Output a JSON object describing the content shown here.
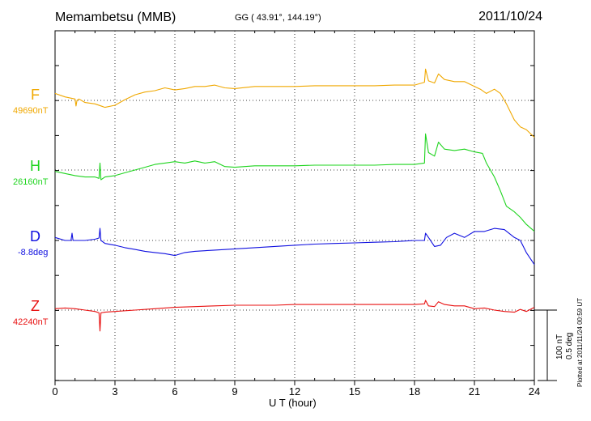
{
  "header": {
    "station": "Memambetsu (MMB)",
    "coords": "GG ( 43.91°, 144.19°)",
    "date": "2011/10/24"
  },
  "footer": {
    "plotted": "Plotted at 2011/11/24 00:59 UT",
    "scale_nt": "100 nT",
    "scale_deg": "0.5 deg"
  },
  "colors": {
    "F": "#f0a800",
    "H": "#1ed41e",
    "D": "#1010e0",
    "Z": "#e81010"
  },
  "chart_data": {
    "type": "line",
    "title": "Memambetsu (MMB)",
    "xlabel": "U T (hour)",
    "xlim": [
      0,
      24
    ],
    "xticks": [
      0,
      3,
      6,
      9,
      12,
      15,
      18,
      21,
      24
    ],
    "grid": true,
    "series": [
      {
        "name": "F",
        "baseline_label": "49690nT",
        "unit": "nT",
        "x": [
          0,
          0.5,
          1.0,
          1.05,
          1.1,
          1.2,
          1.5,
          2.0,
          2.5,
          3.0,
          3.5,
          4.0,
          4.5,
          5.0,
          5.5,
          6.0,
          6.5,
          7.0,
          7.5,
          8.0,
          8.5,
          9.0,
          10,
          11,
          12,
          13,
          14,
          15,
          16,
          17,
          18,
          18.5,
          18.55,
          18.7,
          19.0,
          19.2,
          19.5,
          20.0,
          20.5,
          21.0,
          21.3,
          21.6,
          22.0,
          22.3,
          22.6,
          23.0,
          23.3,
          23.6,
          24.0
        ],
        "values": [
          10,
          5,
          2,
          -8,
          0,
          2,
          -3,
          -5,
          -10,
          -7,
          1,
          8,
          12,
          14,
          18,
          15,
          17,
          20,
          20,
          22,
          18,
          17,
          20,
          20,
          20,
          21,
          21,
          21,
          21,
          22,
          22,
          26,
          45,
          28,
          25,
          38,
          30,
          27,
          27,
          20,
          16,
          10,
          16,
          10,
          -5,
          -28,
          -38,
          -42,
          -53
        ]
      },
      {
        "name": "H",
        "baseline_label": "26160nT",
        "unit": "nT",
        "x": [
          0,
          0.5,
          1.0,
          1.5,
          2.0,
          2.2,
          2.25,
          2.3,
          2.5,
          3.0,
          3.5,
          4.0,
          4.5,
          5.0,
          5.5,
          6.0,
          6.5,
          7.0,
          7.5,
          8.0,
          8.5,
          9.0,
          10,
          11,
          12,
          13,
          14,
          15,
          16,
          17,
          18,
          18.5,
          18.55,
          18.7,
          19.0,
          19.2,
          19.5,
          20.0,
          20.5,
          21.0,
          21.4,
          21.6,
          22.0,
          22.3,
          22.6,
          23.0,
          23.3,
          23.6,
          24.0
        ],
        "values": [
          -2,
          -5,
          -8,
          -10,
          -10,
          -12,
          10,
          -14,
          -10,
          -8,
          -4,
          0,
          4,
          8,
          10,
          12,
          10,
          13,
          10,
          12,
          5,
          4,
          6,
          6,
          6,
          7,
          7,
          7,
          7,
          8,
          8,
          10,
          52,
          25,
          20,
          40,
          30,
          28,
          30,
          26,
          24,
          10,
          -10,
          -30,
          -52,
          -60,
          -68,
          -78,
          -88
        ]
      },
      {
        "name": "D",
        "baseline_label": "-8.8deg",
        "unit": "deg",
        "x": [
          0,
          0.5,
          0.8,
          0.85,
          0.9,
          1.5,
          2.0,
          2.2,
          2.25,
          2.3,
          2.5,
          3.0,
          3.5,
          4.0,
          4.5,
          5.0,
          5.5,
          6.0,
          6.5,
          7.0,
          8.0,
          9.0,
          10,
          11,
          12,
          13,
          14,
          15,
          16,
          17,
          18,
          18.5,
          18.55,
          18.7,
          19.0,
          19.3,
          19.6,
          20.0,
          20.5,
          21.0,
          21.5,
          22.0,
          22.5,
          23.0,
          23.3,
          23.6,
          24.0
        ],
        "values": [
          0.05,
          0.0,
          0.0,
          0.12,
          0.0,
          0.0,
          0.02,
          0.04,
          0.2,
          0.0,
          -0.05,
          -0.08,
          -0.12,
          -0.15,
          -0.18,
          -0.2,
          -0.22,
          -0.25,
          -0.2,
          -0.18,
          -0.16,
          -0.14,
          -0.12,
          -0.1,
          -0.08,
          -0.06,
          -0.05,
          -0.04,
          -0.03,
          -0.02,
          0.0,
          0.0,
          0.12,
          0.05,
          -0.1,
          -0.08,
          0.05,
          0.12,
          0.05,
          0.15,
          0.15,
          0.2,
          0.18,
          0.05,
          0.0,
          -0.2,
          -0.4
        ]
      },
      {
        "name": "Z",
        "baseline_label": "42240nT",
        "unit": "nT",
        "x": [
          0,
          0.5,
          1.0,
          1.5,
          2.0,
          2.2,
          2.25,
          2.3,
          2.5,
          3.0,
          4.0,
          5.0,
          6.0,
          7.0,
          8.0,
          9.0,
          10,
          11,
          12,
          13,
          14,
          15,
          16,
          17,
          18,
          18.5,
          18.55,
          18.7,
          19.0,
          19.2,
          19.5,
          20.0,
          20.5,
          21.0,
          21.5,
          22.0,
          22.5,
          23.0,
          23.3,
          23.6,
          24.0
        ],
        "values": [
          2,
          3,
          2,
          0,
          -2,
          -4,
          -30,
          -4,
          -3,
          -2,
          0,
          2,
          4,
          5,
          6,
          7,
          7,
          7,
          8,
          8,
          8,
          8,
          8,
          8,
          8,
          9,
          14,
          6,
          5,
          12,
          8,
          6,
          6,
          2,
          3,
          0,
          -2,
          -3,
          1,
          -2,
          4
        ]
      }
    ]
  }
}
